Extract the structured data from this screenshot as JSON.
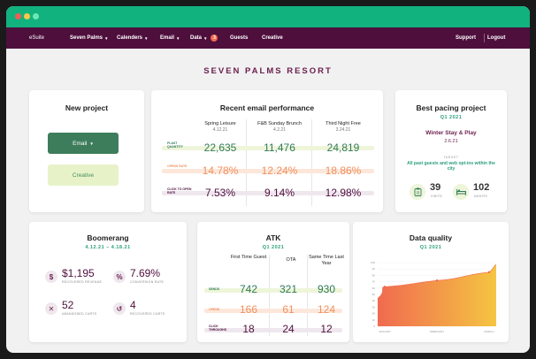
{
  "navbar": {
    "brand": "eSuite",
    "items": [
      {
        "label": "Seven Palms",
        "caret": true
      },
      {
        "label": "Calenders",
        "caret": true
      },
      {
        "label": "Email",
        "caret": true
      },
      {
        "label": "Data",
        "badge": "3"
      },
      {
        "label": "Guests"
      },
      {
        "label": "Creative"
      }
    ],
    "support": "Support",
    "logout": "Logout"
  },
  "page_title": "SEVEN PALMS RESORT",
  "new_project": {
    "title": "New project",
    "email_btn": "Email",
    "creative_btn": "Creative"
  },
  "email_perf": {
    "title": "Recent email performance",
    "columns": [
      {
        "name": "Spring Leisure",
        "date": "4.12.21"
      },
      {
        "name": "F&B Sunday Brunch",
        "date": "4.2.21"
      },
      {
        "name": "Third Night Free",
        "date": "3.24.21"
      }
    ],
    "rows": [
      {
        "label": "PLAST QUANTITY",
        "values": [
          "22,635",
          "11,476",
          "24,819"
        ],
        "color": "#2f7a5a",
        "band": "#eef5d9"
      },
      {
        "label": "OPENS RATE",
        "values": [
          "14.78%",
          "12.24%",
          "18.86%"
        ],
        "color": "#f0915f",
        "band": "#fde7da"
      },
      {
        "label": "CLICK TO OPEN RATE",
        "values": [
          "7.53%",
          "9.14%",
          "12.98%"
        ],
        "color": "#4e0f3d",
        "band": "#efe7ee"
      }
    ]
  },
  "best_pacing": {
    "title": "Best pacing project",
    "quarter": "Q1 2021",
    "name": "Winter Stay & Play",
    "date": "2.6.21",
    "target_label": "TARGET",
    "target": "All past guests and web opt-ins within the city",
    "visits": "39",
    "visits_label": "VISITS",
    "nights": "102",
    "nights_label": "NIGHTS"
  },
  "boomerang": {
    "title": "Boomerang",
    "date_range": "4.12.21 – 4.18.21",
    "stats": [
      {
        "value": "$1,195",
        "label": "RECOVERED REVENUE",
        "icon": "$"
      },
      {
        "value": "7.69%",
        "label": "CONVERSION RATE",
        "icon": "%"
      },
      {
        "value": "52",
        "label": "ABANDONED CARTS",
        "icon": "✕"
      },
      {
        "value": "4",
        "label": "RECOVERED CARTS",
        "icon": "↺"
      }
    ]
  },
  "atk": {
    "title": "ATK",
    "quarter": "Q1 2021",
    "columns": [
      "First Time Guest",
      "OTA",
      "Same Time Last Year"
    ],
    "rows": [
      {
        "label": "SENDS",
        "values": [
          "742",
          "321",
          "930"
        ],
        "color": "#2f7a5a",
        "band": "#eef5d9"
      },
      {
        "label": "OPENS",
        "values": [
          "166",
          "61",
          "124"
        ],
        "color": "#f0915f",
        "band": "#fde7da"
      },
      {
        "label": "CLICK THROUGHS",
        "values": [
          "18",
          "24",
          "12"
        ],
        "color": "#4e0f3d",
        "band": "#efe7ee"
      }
    ]
  },
  "data_quality": {
    "title": "Data quality",
    "quarter": "Q1 2021",
    "x_labels": [
      "JANUARY",
      "FEBRUARY",
      "MARCH"
    ],
    "y_ticks": [
      "100",
      "90",
      "80",
      "70",
      "60",
      "50",
      "40",
      "30",
      "20",
      "10",
      "0"
    ]
  },
  "chart_data": {
    "type": "area",
    "title": "Data quality",
    "subtitle": "Q1 2021",
    "x": [
      "JANUARY",
      "FEBRUARY",
      "MARCH"
    ],
    "series": [
      {
        "values": [
          62,
          72,
          85
        ]
      }
    ],
    "ylim": [
      0,
      100
    ],
    "colors": [
      "#f06a50",
      "#f5c542"
    ]
  }
}
